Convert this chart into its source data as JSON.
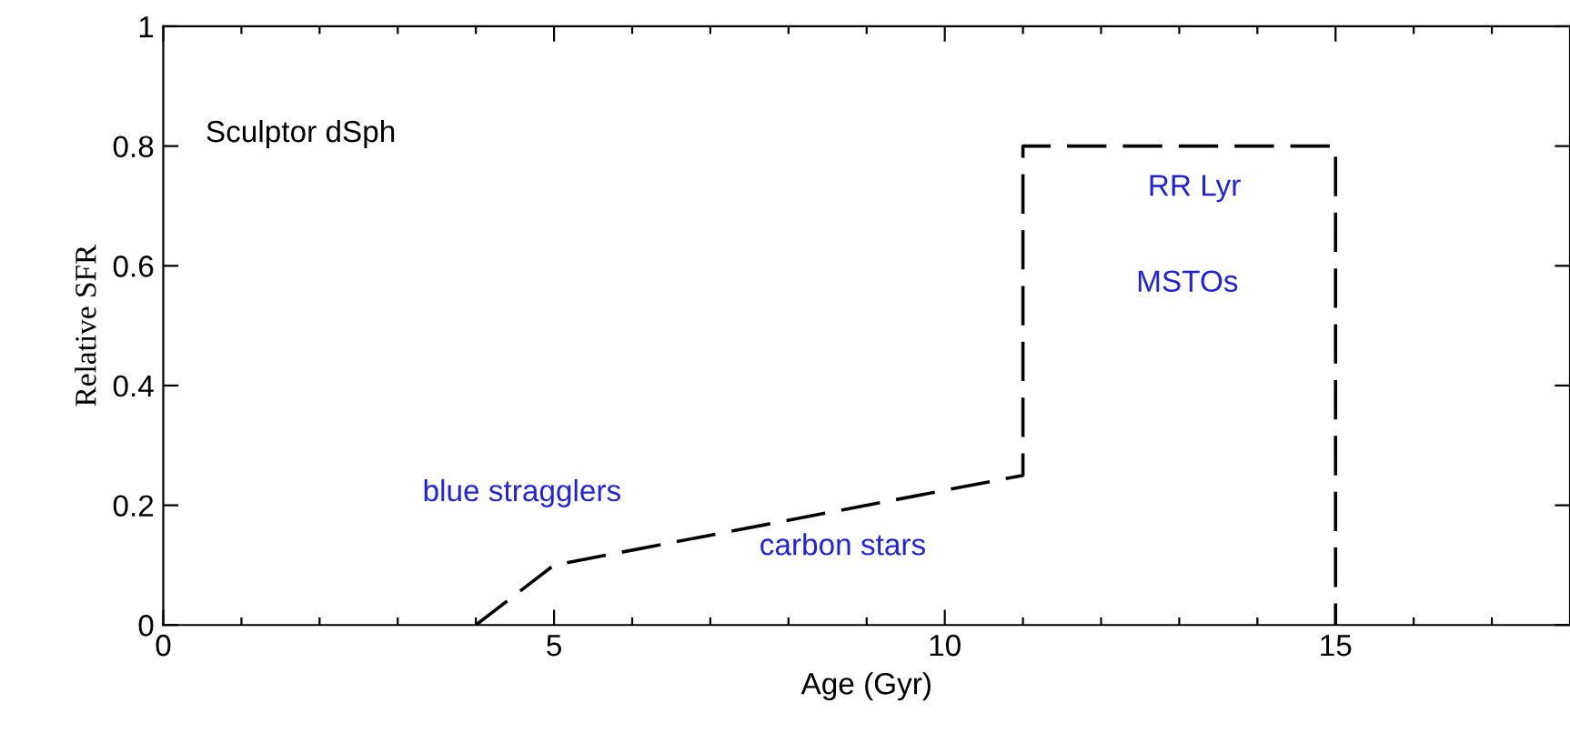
{
  "chart_data": {
    "type": "line",
    "xlabel": "Age (Gyr)",
    "ylabel": "Relative SFR",
    "x": [
      4,
      5,
      11,
      11,
      15,
      15
    ],
    "series": [
      {
        "color": "#000000",
        "values": [
          0,
          0.1,
          0.25,
          0.8,
          0.8,
          0
        ]
      }
    ],
    "line_style": "dashed",
    "marker": "none",
    "grid": false,
    "legend": false,
    "xlim": [
      0,
      18
    ],
    "ylim": [
      0,
      1
    ],
    "xticks": [
      0,
      {
        "value": 1,
        "label": null
      },
      {
        "value": 2,
        "label": null
      },
      {
        "value": 3,
        "label": null
      },
      {
        "value": 4,
        "label": null
      },
      5,
      {
        "value": 6,
        "label": null
      },
      {
        "value": 7,
        "label": null
      },
      {
        "value": 8,
        "label": null
      },
      {
        "value": 9,
        "label": null
      },
      10,
      {
        "value": 11,
        "label": null
      },
      {
        "value": 12,
        "label": null
      },
      {
        "value": 13,
        "label": null
      },
      {
        "value": 14,
        "label": null
      },
      15,
      {
        "value": 16,
        "label": null
      },
      {
        "value": 17,
        "label": null
      }
    ],
    "yticks": [
      0,
      0.2,
      0.4,
      0.6,
      0.8,
      1
    ],
    "annotations": [
      "Sculptor dSph",
      "blue stragglers",
      "carbon stars",
      "RR Lyr",
      "MSTOs"
    ]
  }
}
